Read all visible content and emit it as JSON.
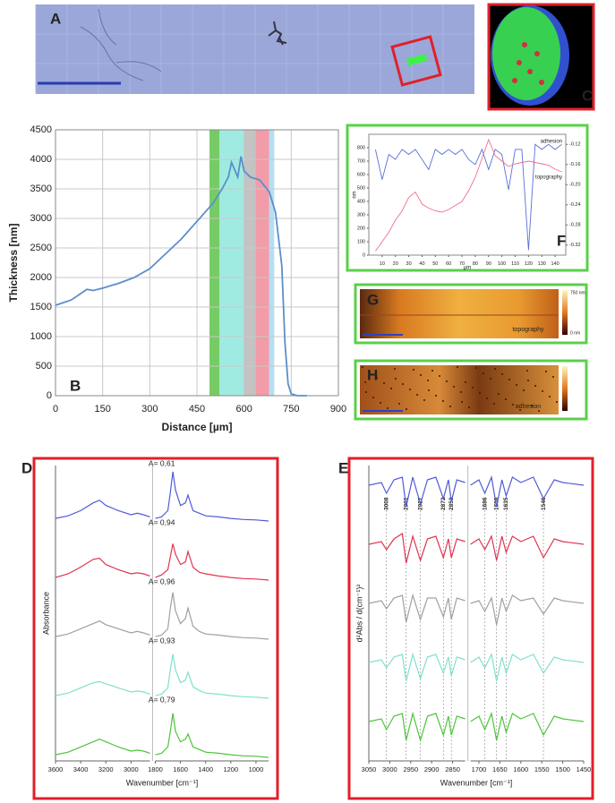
{
  "panel_labels": [
    "A",
    "B",
    "C",
    "D",
    "E",
    "F",
    "G",
    "H"
  ],
  "images": {
    "G": {
      "label": "topography",
      "scale_max": "750 nm",
      "scale_min": "0 nm"
    },
    "H": {
      "label": "adhesion"
    }
  },
  "chart_data": [
    {
      "type": "line",
      "xlabel": "Distance  [µm]",
      "ylabel": "Thickness [nm]",
      "x": [
        0,
        50,
        100,
        120,
        150,
        200,
        250,
        300,
        350,
        400,
        450,
        500,
        530,
        550,
        560,
        580,
        590,
        600,
        620,
        650,
        680,
        700,
        720,
        730,
        740,
        750,
        770,
        800
      ],
      "values": [
        1530,
        1620,
        1800,
        1780,
        1820,
        1900,
        2000,
        2150,
        2400,
        2650,
        2950,
        3250,
        3500,
        3700,
        3950,
        3700,
        4050,
        3800,
        3700,
        3650,
        3450,
        3100,
        2200,
        900,
        200,
        30,
        0,
        0
      ],
      "color": "#5b8fc9",
      "xlim": [
        0,
        900
      ],
      "xticks": [
        0,
        150,
        300,
        450,
        600,
        750,
        900
      ],
      "ylim": [
        0,
        4500
      ],
      "yticks": [
        0,
        500,
        1000,
        1500,
        2000,
        2500,
        3000,
        3500,
        4000,
        4500
      ],
      "grid": true,
      "spans": [
        {
          "xlim": [
            490,
            522
          ],
          "color": "#5ec24a"
        },
        {
          "xlim": [
            522,
            598
          ],
          "color": "#8fe8dc"
        },
        {
          "xlim": [
            598,
            636
          ],
          "color": "#b8b8b8"
        },
        {
          "xlim": [
            636,
            680
          ],
          "color": "#f08a9a"
        },
        {
          "xlim": [
            680,
            696
          ],
          "color": "#a9d8f0"
        }
      ]
    },
    {
      "type": "line",
      "xlabel": "µm",
      "ylabel": "nm",
      "x": [
        5,
        10,
        15,
        20,
        25,
        30,
        35,
        40,
        45,
        50,
        55,
        60,
        65,
        70,
        75,
        80,
        85,
        90,
        95,
        100,
        105,
        110,
        115,
        120,
        125,
        130,
        135,
        140,
        145
      ],
      "series": [
        {
          "name": "adhesion",
          "color": "#5a6fd6",
          "axis": "y2",
          "values": [
            -0.13,
            -0.19,
            -0.14,
            -0.15,
            -0.13,
            -0.14,
            -0.13,
            -0.15,
            -0.17,
            -0.13,
            -0.14,
            -0.13,
            -0.14,
            -0.13,
            -0.15,
            -0.16,
            -0.13,
            -0.17,
            -0.13,
            -0.14,
            -0.21,
            -0.13,
            -0.13,
            -0.33,
            -0.12,
            -0.13,
            -0.12,
            -0.13,
            -0.12
          ]
        },
        {
          "name": "topography",
          "color": "#ef6f8a",
          "values": [
            30,
            100,
            170,
            260,
            330,
            430,
            470,
            380,
            350,
            330,
            320,
            340,
            370,
            400,
            480,
            580,
            720,
            860,
            740,
            700,
            660,
            680,
            690,
            700,
            690,
            680,
            670,
            640,
            620
          ]
        }
      ],
      "xlim": [
        0,
        148
      ],
      "xticks": [
        10,
        20,
        30,
        40,
        50,
        60,
        70,
        80,
        90,
        100,
        110,
        120,
        130,
        140
      ],
      "ylim": [
        0,
        900
      ],
      "yticks": [
        0,
        100,
        200,
        300,
        400,
        500,
        600,
        700,
        800
      ],
      "y2lim": [
        -0.34,
        -0.1
      ],
      "y2ticks": [
        -0.12,
        -0.16,
        {
          "value": -0.2,
          "label": "-0.20"
        },
        -0.24,
        -0.28,
        -0.32
      ],
      "grid": false
    },
    {
      "type": "spectra",
      "xlabel": "Wavenumber [cm⁻¹]",
      "ylabel": "Absorbance",
      "x": [
        3600,
        3500,
        3400,
        3300,
        3250,
        3200,
        3100,
        3000,
        2950,
        2900,
        2850,
        1800,
        1750,
        1700,
        1680,
        1660,
        1640,
        1600,
        1560,
        1540,
        1500,
        1450,
        1400,
        1300,
        1200,
        1100,
        1000,
        900
      ],
      "xlim": [
        3600,
        900
      ],
      "xbreak": [
        2850,
        1800
      ],
      "xticks": [
        3600,
        3400,
        3200,
        3000,
        1800,
        1600,
        1400,
        1200,
        1000
      ],
      "series": [
        {
          "name": "A= 0,61",
          "color": "#4f5bd5",
          "values": [
            0.05,
            0.1,
            0.2,
            0.35,
            0.4,
            0.3,
            0.2,
            0.12,
            0.15,
            0.12,
            0.08,
            0.05,
            0.08,
            0.2,
            0.55,
            0.95,
            0.6,
            0.3,
            0.35,
            0.5,
            0.2,
            0.15,
            0.1,
            0.08,
            0.05,
            0.03,
            0.02,
            0
          ]
        },
        {
          "name": "A= 0,94",
          "color": "#e0344f",
          "values": [
            0.05,
            0.12,
            0.25,
            0.4,
            0.42,
            0.3,
            0.2,
            0.12,
            0.14,
            0.12,
            0.08,
            0.05,
            0.1,
            0.2,
            0.45,
            0.7,
            0.5,
            0.3,
            0.35,
            0.55,
            0.25,
            0.15,
            0.12,
            0.08,
            0.05,
            0.03,
            0.02,
            0
          ]
        },
        {
          "name": "A= 0,96",
          "color": "#a0a0a0",
          "values": [
            0.05,
            0.1,
            0.2,
            0.3,
            0.35,
            0.28,
            0.2,
            0.12,
            0.15,
            0.12,
            0.08,
            0.05,
            0.08,
            0.2,
            0.6,
            0.9,
            0.55,
            0.3,
            0.4,
            0.6,
            0.25,
            0.15,
            0.1,
            0.08,
            0.05,
            0.03,
            0.02,
            0
          ]
        },
        {
          "name": "A= 0,93",
          "color": "#7fe0cf",
          "values": [
            0.05,
            0.1,
            0.2,
            0.3,
            0.32,
            0.28,
            0.2,
            0.12,
            0.14,
            0.12,
            0.08,
            0.05,
            0.08,
            0.2,
            0.55,
            0.85,
            0.55,
            0.3,
            0.35,
            0.5,
            0.22,
            0.15,
            0.1,
            0.08,
            0.05,
            0.03,
            0.02,
            0
          ]
        },
        {
          "name": "A= 0,79",
          "color": "#4cc43a",
          "values": [
            0.05,
            0.1,
            0.2,
            0.3,
            0.35,
            0.3,
            0.2,
            0.12,
            0.14,
            0.12,
            0.08,
            0.05,
            0.08,
            0.2,
            0.5,
            0.85,
            0.5,
            0.3,
            0.35,
            0.45,
            0.2,
            0.15,
            0.1,
            0.08,
            0.05,
            0.03,
            0.02,
            0
          ]
        }
      ]
    },
    {
      "type": "spectra",
      "xlabel": "Wavenumber [cm⁻¹]",
      "ylabel": "d²Abs / d(cm⁻¹)²",
      "x": [
        3050,
        3020,
        3008,
        2990,
        2970,
        2961,
        2945,
        2927,
        2910,
        2890,
        2872,
        2860,
        2853,
        2840,
        2820,
        1720,
        1700,
        1686,
        1670,
        1658,
        1645,
        1635,
        1620,
        1600,
        1570,
        1546,
        1520,
        1500,
        1450
      ],
      "xlim": [
        3050,
        1450
      ],
      "xbreak": [
        2820,
        1720
      ],
      "xticks": [
        3050,
        3000,
        2950,
        2900,
        2850,
        1700,
        1650,
        1600,
        1550,
        1500,
        1450
      ],
      "peaks": [
        3008,
        2961,
        2927,
        2872,
        2853,
        1686,
        1658,
        1635,
        1546
      ],
      "series": [
        {
          "color": "#4f5bd5",
          "values": [
            0,
            0.1,
            -0.3,
            0.2,
            0.3,
            -0.8,
            0.3,
            -0.7,
            0.2,
            0.3,
            -0.5,
            0.2,
            -0.6,
            0.2,
            0.1,
            0,
            0.2,
            -0.3,
            0.3,
            -0.8,
            0.2,
            -0.4,
            0.3,
            0.1,
            0.3,
            -0.5,
            0.2,
            0.1,
            0
          ]
        },
        {
          "color": "#e0344f",
          "values": [
            0,
            0.1,
            -0.2,
            0.2,
            0.4,
            -0.7,
            0.3,
            -0.6,
            0.2,
            0.3,
            -0.5,
            0.2,
            -0.5,
            0.2,
            0.1,
            0,
            0.2,
            -0.2,
            0.3,
            -0.6,
            0.3,
            -0.3,
            0.3,
            0.1,
            0.3,
            -0.5,
            0.2,
            0.1,
            0
          ]
        },
        {
          "color": "#a0a0a0",
          "values": [
            0,
            0.1,
            -0.2,
            0.2,
            0.3,
            -0.7,
            0.3,
            -0.6,
            0.2,
            0.2,
            -0.5,
            0.2,
            -0.6,
            0.2,
            0.1,
            0,
            0.1,
            -0.3,
            0.2,
            -0.8,
            0.2,
            -0.3,
            0.3,
            0.1,
            0.2,
            -0.4,
            0.2,
            0.1,
            0
          ]
        },
        {
          "color": "#7fe0cf",
          "values": [
            0,
            0.1,
            -0.2,
            0.2,
            0.3,
            -0.7,
            0.3,
            -0.6,
            0.2,
            0.3,
            -0.4,
            0.2,
            -0.5,
            0.2,
            0.1,
            0,
            0.2,
            -0.2,
            0.3,
            -0.7,
            0.2,
            -0.4,
            0.3,
            0.1,
            0.3,
            -0.4,
            0.2,
            0.1,
            0
          ]
        },
        {
          "color": "#4cc43a",
          "values": [
            0,
            0.1,
            -0.3,
            0.2,
            0.3,
            -0.7,
            0.3,
            -0.7,
            0.2,
            0.3,
            -0.5,
            0.2,
            -0.5,
            0.2,
            0.1,
            0,
            0.2,
            -0.3,
            0.3,
            -0.7,
            0.2,
            -0.4,
            0.3,
            0.1,
            0.3,
            -0.5,
            0.2,
            0.1,
            0
          ]
        }
      ]
    }
  ]
}
